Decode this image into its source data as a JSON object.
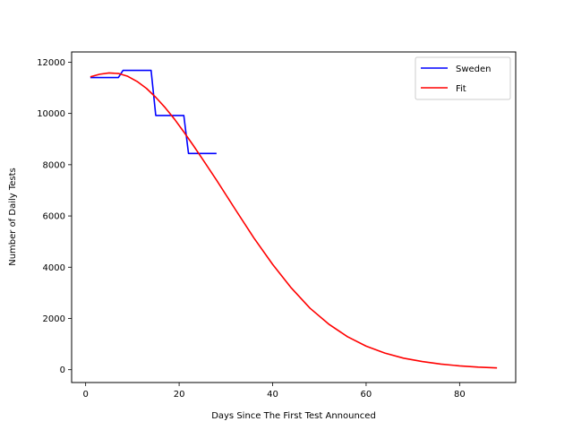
{
  "chart_data": {
    "type": "line",
    "xlabel": "Days Since The First Test Announced",
    "ylabel": "Number of Daily Tests",
    "xlim": [
      -3,
      92
    ],
    "ylim": [
      -500,
      12400
    ],
    "xticks": [
      0,
      20,
      40,
      60,
      80
    ],
    "yticks": [
      0,
      2000,
      4000,
      6000,
      8000,
      10000,
      12000
    ],
    "grid": false,
    "legend_position": "top-right",
    "series": [
      {
        "name": "Sweden",
        "color": "#0000ff",
        "style": "step",
        "x": [
          1,
          7,
          8,
          14,
          15,
          21,
          22,
          28
        ],
        "y": [
          11400,
          11400,
          11680,
          11680,
          9920,
          9920,
          8440,
          8440
        ]
      },
      {
        "name": "Fit",
        "color": "#ff0000",
        "style": "line",
        "x": [
          1,
          3,
          5,
          7,
          9,
          11,
          13,
          15,
          17,
          19,
          21,
          23,
          25,
          28,
          32,
          36,
          40,
          44,
          48,
          52,
          56,
          60,
          64,
          68,
          72,
          76,
          80,
          84,
          88
        ],
        "y": [
          11430,
          11530,
          11580,
          11560,
          11450,
          11250,
          10980,
          10630,
          10230,
          9780,
          9280,
          8760,
          8220,
          7400,
          6260,
          5140,
          4110,
          3190,
          2400,
          1780,
          1290,
          920,
          650,
          450,
          320,
          220,
          150,
          100,
          70
        ]
      }
    ]
  }
}
